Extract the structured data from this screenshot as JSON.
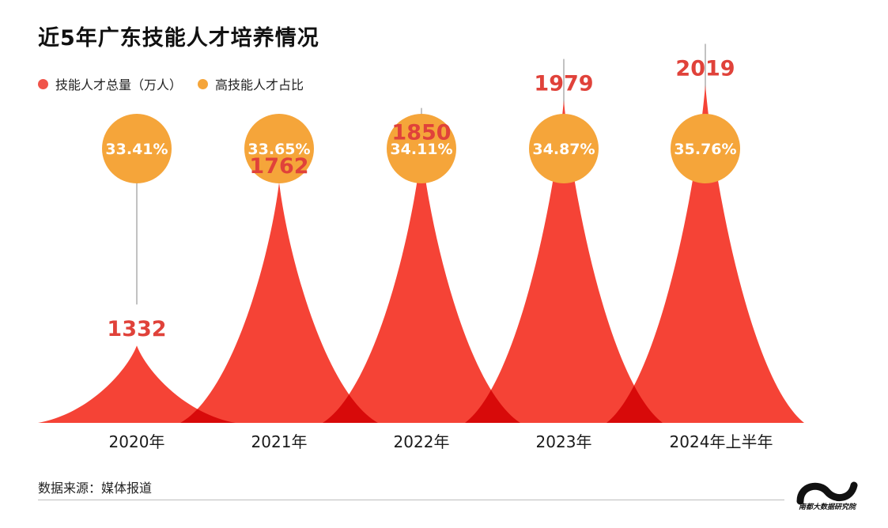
{
  "title": "近5年广东技能人才培养情况",
  "legend": [
    {
      "label": "技能人才总量（万人）",
      "color": "#f0544a"
    },
    {
      "label": "高技能人才占比",
      "color": "#f5a53a"
    }
  ],
  "source": "数据来源：媒体报道",
  "logo_text": "南都大数据研究院",
  "colors": {
    "peak": "#f54336",
    "bubble": "#f5a53a",
    "value_text": "#e0423a",
    "overlap": "#d80a0a"
  },
  "chart_data": {
    "type": "area",
    "categories": [
      "2020年",
      "2021年",
      "2022年",
      "2023年",
      "2024年上半年"
    ],
    "series": [
      {
        "name": "技能人才总量（万人）",
        "values": [
          1332,
          1762,
          1850,
          1979,
          2019
        ],
        "labels": [
          "1332",
          "1762",
          "1850",
          "1979",
          "2019"
        ]
      },
      {
        "name": "高技能人才占比",
        "values": [
          33.41,
          33.65,
          34.11,
          34.87,
          35.76
        ],
        "labels": [
          "33.41%",
          "33.65%",
          "34.11%",
          "34.87%",
          "35.76%"
        ]
      }
    ]
  }
}
